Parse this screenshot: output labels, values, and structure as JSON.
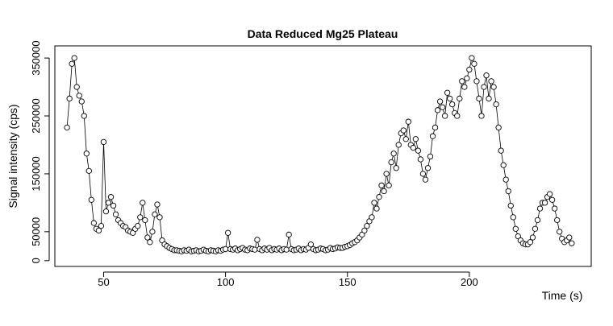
{
  "chart_data": {
    "type": "line",
    "title": "Data Reduced Mg25 Plateau",
    "x_label": "Time (s)",
    "y_label": "Signal intensity (cps)",
    "color": "#000000",
    "marker": "circle",
    "x": [
      35,
      36,
      37,
      38,
      39,
      40,
      41,
      42,
      43,
      44,
      45,
      46,
      47,
      48,
      49,
      50,
      51,
      52,
      53,
      54,
      55,
      56,
      57,
      58,
      59,
      60,
      61,
      62,
      63,
      64,
      65,
      66,
      67,
      68,
      69,
      70,
      71,
      72,
      73,
      74,
      75,
      76,
      77,
      78,
      79,
      80,
      81,
      82,
      83,
      84,
      85,
      86,
      87,
      88,
      89,
      90,
      91,
      92,
      93,
      94,
      95,
      96,
      97,
      98,
      99,
      100,
      101,
      102,
      103,
      104,
      105,
      106,
      107,
      108,
      109,
      110,
      111,
      112,
      113,
      114,
      115,
      116,
      117,
      118,
      119,
      120,
      121,
      122,
      123,
      124,
      125,
      126,
      127,
      128,
      129,
      130,
      131,
      132,
      133,
      134,
      135,
      136,
      137,
      138,
      139,
      140,
      141,
      142,
      143,
      144,
      145,
      146,
      147,
      148,
      149,
      150,
      151,
      152,
      153,
      154,
      155,
      156,
      157,
      158,
      159,
      160,
      161,
      162,
      163,
      164,
      165,
      166,
      167,
      168,
      169,
      170,
      171,
      172,
      173,
      174,
      175,
      176,
      177,
      178,
      179,
      180,
      181,
      182,
      183,
      184,
      185,
      186,
      187,
      188,
      189,
      190,
      191,
      192,
      193,
      194,
      195,
      196,
      197,
      198,
      199,
      200,
      201,
      202,
      203,
      204,
      205,
      206,
      207,
      208,
      209,
      210,
      211,
      212,
      213,
      214,
      215,
      216,
      217,
      218,
      219,
      220,
      221,
      222,
      223,
      224,
      225,
      226,
      227,
      228,
      229,
      230,
      231,
      232,
      233,
      234,
      235,
      236,
      237,
      238,
      239,
      240,
      241,
      242
    ],
    "values": [
      230000,
      280000,
      340000,
      350000,
      300000,
      285000,
      275000,
      250000,
      185000,
      155000,
      105000,
      65000,
      55000,
      52000,
      60000,
      205000,
      85000,
      100000,
      110000,
      95000,
      80000,
      70000,
      65000,
      60000,
      58000,
      52000,
      50000,
      48000,
      55000,
      60000,
      75000,
      100000,
      70000,
      40000,
      32000,
      50000,
      80000,
      97000,
      75000,
      35000,
      28000,
      25000,
      22000,
      20000,
      18000,
      18000,
      17000,
      16000,
      18000,
      17000,
      19000,
      16000,
      17000,
      18000,
      16000,
      17000,
      19000,
      17000,
      16000,
      18000,
      17000,
      16000,
      18000,
      17000,
      19000,
      20000,
      48000,
      20000,
      19000,
      21000,
      18000,
      20000,
      22000,
      19000,
      18000,
      21000,
      20000,
      19000,
      36000,
      20000,
      18000,
      21000,
      19000,
      22000,
      18000,
      20000,
      19000,
      21000,
      18000,
      20000,
      19000,
      45000,
      20000,
      18000,
      19000,
      21000,
      18000,
      20000,
      19000,
      22000,
      28000,
      20000,
      18000,
      19000,
      21000,
      20000,
      18000,
      19000,
      22000,
      20000,
      21000,
      23000,
      22000,
      22000,
      24000,
      25000,
      27000,
      30000,
      32000,
      35000,
      40000,
      45000,
      52000,
      60000,
      68000,
      75000,
      100000,
      90000,
      110000,
      130000,
      120000,
      150000,
      130000,
      170000,
      185000,
      160000,
      200000,
      220000,
      225000,
      210000,
      240000,
      200000,
      195000,
      210000,
      190000,
      175000,
      150000,
      140000,
      160000,
      180000,
      215000,
      230000,
      260000,
      275000,
      265000,
      250000,
      290000,
      280000,
      270000,
      255000,
      250000,
      280000,
      310000,
      300000,
      315000,
      330000,
      350000,
      340000,
      310000,
      280000,
      250000,
      300000,
      320000,
      280000,
      310000,
      300000,
      270000,
      230000,
      190000,
      165000,
      140000,
      120000,
      95000,
      75000,
      55000,
      42000,
      35000,
      30000,
      28000,
      28000,
      32000,
      40000,
      55000,
      70000,
      90000,
      100000,
      100000,
      110000,
      115000,
      105000,
      90000,
      70000,
      50000,
      38000,
      32000,
      35000,
      40000,
      30000
    ],
    "xlim": [
      30,
      250
    ],
    "ylim": [
      -10000,
      371000
    ],
    "xticks": [
      50,
      100,
      150,
      200
    ],
    "yticks": [
      0,
      50000,
      150000,
      250000,
      350000
    ]
  }
}
